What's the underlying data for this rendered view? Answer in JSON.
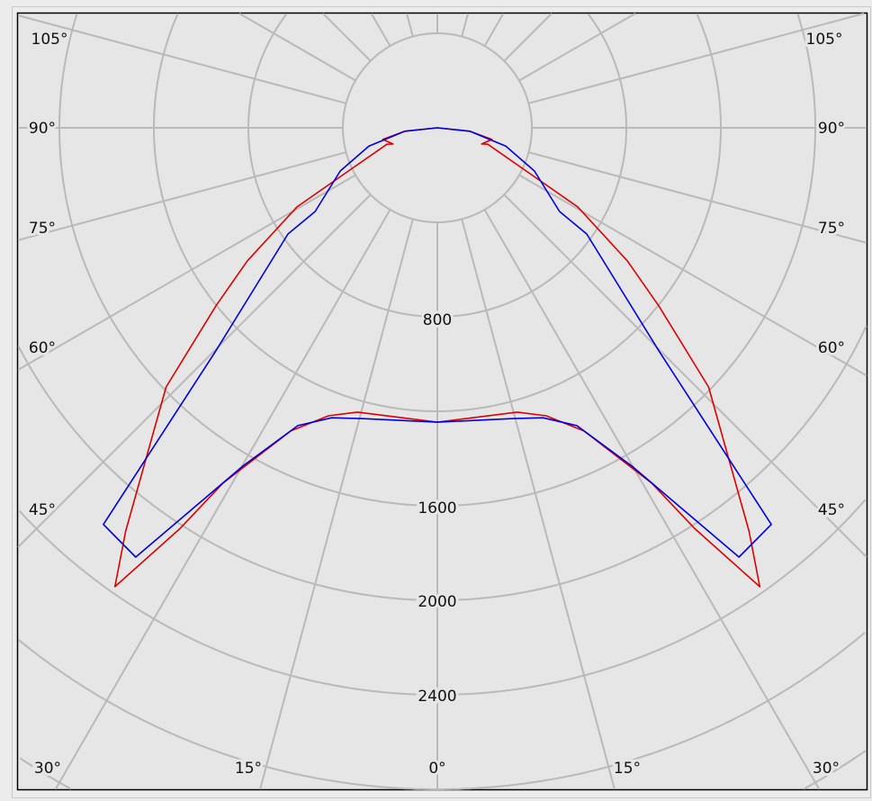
{
  "chart_data": {
    "type": "polar-line",
    "title": "",
    "background": "#e6e6e6",
    "grid": true,
    "grid_color": "#b9b9b9",
    "radial_ticks": [
      400,
      800,
      1200,
      1600,
      2000,
      2400,
      2800,
      3200
    ],
    "radial_tick_labels": [
      "800",
      "1600",
      "2000",
      "2400"
    ],
    "angle_step_deg": 15,
    "angle_labels_left": [
      "105°",
      "90°",
      "75°",
      "60°",
      "45°"
    ],
    "angle_labels_bottom": [
      "30°",
      "15°",
      "0°",
      "15°",
      "30°"
    ],
    "symmetric": true,
    "series": [
      {
        "color": "#dd0000",
        "angle_deg": [
          0,
          15.7,
          20.7,
          25.8,
          31.1,
          32.7,
          35.1,
          37.7,
          46.3,
          51.2,
          55,
          60.6,
          63.4,
          72,
          70,
          78,
          84,
          90
        ],
        "intensity": [
          1246,
          1250,
          1303,
          1425,
          1756,
          2015,
          2374,
          2157,
          1588,
          1203,
          982,
          682,
          452,
          224,
          200,
          236,
          138,
          0
        ]
      },
      {
        "color": "#0000dd",
        "angle_deg": [
          0,
          14.6,
          20,
          25.1,
          29.9,
          35.1,
          40.1,
          44.8,
          54.6,
          55.6,
          66,
          75,
          84,
          90
        ],
        "intensity": [
          1246,
          1272,
          1306,
          1392,
          1652,
          2221,
          2195,
          1331,
          776,
          627,
          450,
          300,
          138,
          0
        ]
      }
    ]
  }
}
